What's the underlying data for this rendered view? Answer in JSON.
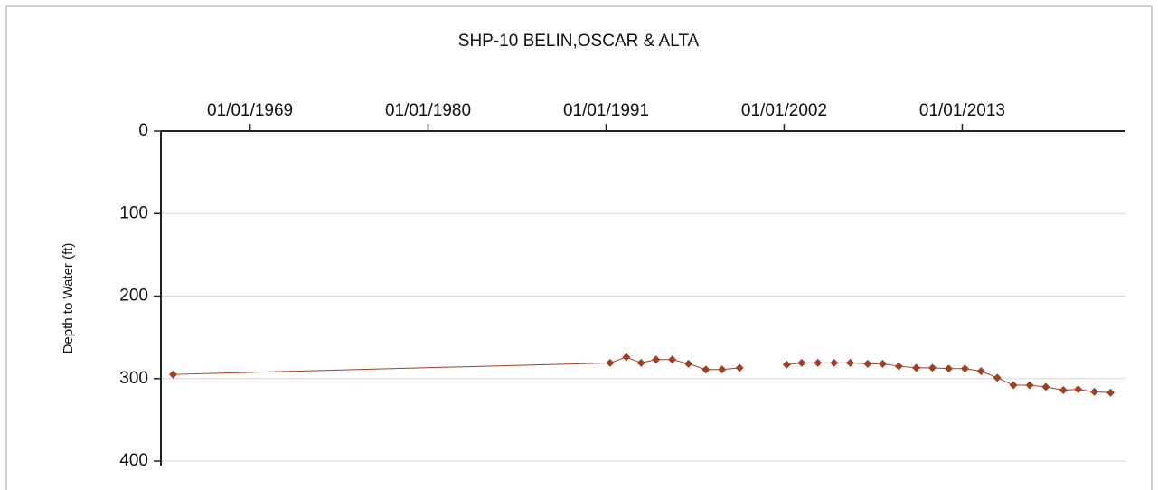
{
  "chart_data": {
    "type": "line",
    "title": "SHP-10  BELIN,OSCAR & ALTA",
    "y_label": "Depth to Water (ft)",
    "x": [
      "1964-04-01",
      "1991-04-01",
      "1992-04-01",
      "1993-03-01",
      "1994-02-01",
      "1995-02-01",
      "1996-02-01",
      "1997-03-01",
      "1998-03-01",
      "1999-04-01",
      "2000-09-01",
      "2002-03-01",
      "2003-02-01",
      "2004-02-01",
      "2005-02-01",
      "2006-02-01",
      "2007-03-01",
      "2008-02-01",
      "2009-02-01",
      "2010-03-01",
      "2011-03-01",
      "2012-03-01",
      "2013-03-01",
      "2014-03-01",
      "2015-03-01",
      "2016-03-01",
      "2017-03-01",
      "2018-03-01",
      "2019-04-01",
      "2020-03-01",
      "2021-03-01",
      "2022-03-01"
    ],
    "series": [
      {
        "name": "Depth to Water",
        "color": "#a33f1f",
        "values": [
          295,
          281,
          274,
          281,
          277,
          277,
          282,
          289,
          289,
          287,
          null,
          283,
          281,
          281,
          281,
          281,
          282,
          282,
          285,
          287,
          287,
          288,
          288,
          291,
          299,
          308,
          308,
          310,
          314,
          313,
          316,
          317
        ]
      }
    ],
    "xlim": [
      "1963-07-01",
      "2023-02-01"
    ],
    "xticks": [
      {
        "value": "1969-01-01",
        "label": "01/01/1969"
      },
      {
        "value": "1980-01-01",
        "label": "01/01/1980"
      },
      {
        "value": "1991-01-01",
        "label": "01/01/1991"
      },
      {
        "value": "2002-01-01",
        "label": "01/01/2002"
      },
      {
        "value": "2013-01-01",
        "label": "01/01/2013"
      }
    ],
    "ylim": [
      0,
      400
    ],
    "yticks": [
      0,
      100,
      200,
      300,
      400
    ],
    "y_inverted": true,
    "grid": true
  }
}
